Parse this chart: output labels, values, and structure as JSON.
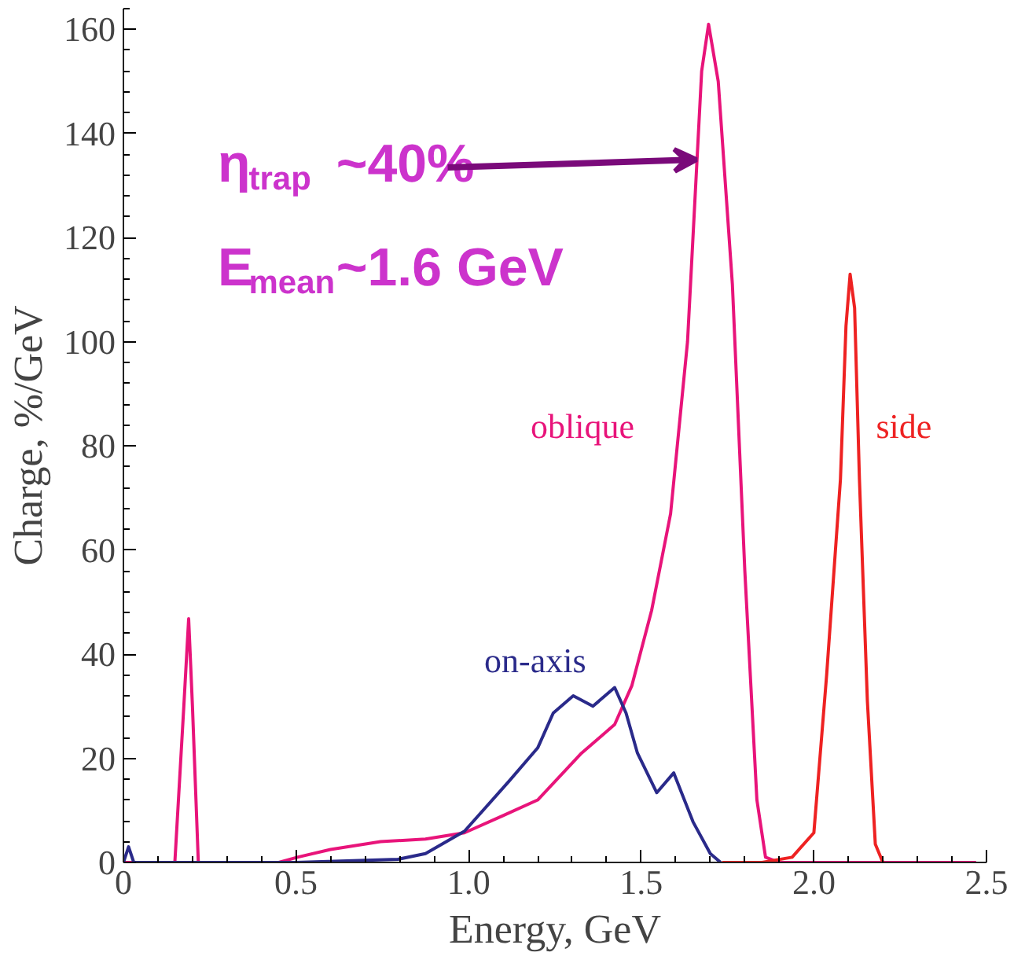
{
  "chart_data": {
    "type": "line",
    "xlabel": "Energy, GeV",
    "ylabel": "Charge, %/GeV",
    "xlim": [
      0,
      2.5
    ],
    "ylim": [
      0,
      164
    ],
    "xticks": [
      0,
      {
        "value": 0.5,
        "label": "0.5"
      },
      {
        "value": 1.0,
        "label": "1.0"
      },
      {
        "value": 1.5,
        "label": "1.5"
      },
      {
        "value": 2.0,
        "label": "2.0"
      },
      {
        "value": 2.5,
        "label": "2.5"
      }
    ],
    "yticks": [
      0,
      20,
      40,
      60,
      80,
      100,
      120,
      140,
      160
    ],
    "grid": false,
    "legend": false,
    "marker": "none",
    "line_style": "solid",
    "series": [
      {
        "name": "oblique",
        "color": "#e8147a",
        "x": [
          0,
          0.1,
          0.149,
          0.175,
          0.189,
          0.2,
          0.217,
          0.3,
          0.45,
          0.504,
          0.6,
          0.745,
          0.875,
          0.988,
          1.1,
          1.2,
          1.327,
          1.423,
          1.473,
          1.53,
          1.585,
          1.634,
          1.675,
          1.695,
          1.723,
          1.764,
          1.8,
          1.835,
          1.86,
          1.9,
          2.0,
          2.47
        ],
        "values": [
          0,
          0,
          0,
          30,
          46.8,
          30,
          0,
          0,
          0,
          1,
          2.5,
          4,
          4.5,
          5.7,
          9,
          12,
          21,
          26.5,
          34,
          48.4,
          67,
          100,
          152,
          161,
          150,
          111,
          56,
          12,
          1,
          0,
          0,
          0
        ]
      },
      {
        "name": "on-axis",
        "color": "#2a2a8a",
        "x": [
          0,
          0.015,
          0.03,
          0.1,
          0.5,
          0.795,
          0.875,
          0.988,
          1.117,
          1.2,
          1.245,
          1.303,
          1.36,
          1.423,
          1.456,
          1.489,
          1.545,
          1.594,
          1.65,
          1.7,
          1.73
        ],
        "values": [
          0,
          3,
          0,
          0,
          0,
          0.6,
          1.7,
          6,
          15.6,
          22,
          28.7,
          32,
          30,
          33.6,
          28.7,
          21,
          13.4,
          17.2,
          7.8,
          1.7,
          0
        ]
      },
      {
        "name": "side",
        "color": "#ee2222",
        "x": [
          1.734,
          1.85,
          1.937,
          2.0,
          2.037,
          2.077,
          2.093,
          2.105,
          2.118,
          2.132,
          2.155,
          2.178,
          2.2
        ],
        "values": [
          0,
          0,
          1,
          5.7,
          36,
          73.6,
          103,
          113,
          106.5,
          73.6,
          31,
          3.5,
          0
        ]
      }
    ],
    "annotations": [
      {
        "text": "η$_{trap}$~40%",
        "x": 1.66,
        "y": 135
      },
      "E$_{mean}$~1.6 GeV"
    ]
  }
}
